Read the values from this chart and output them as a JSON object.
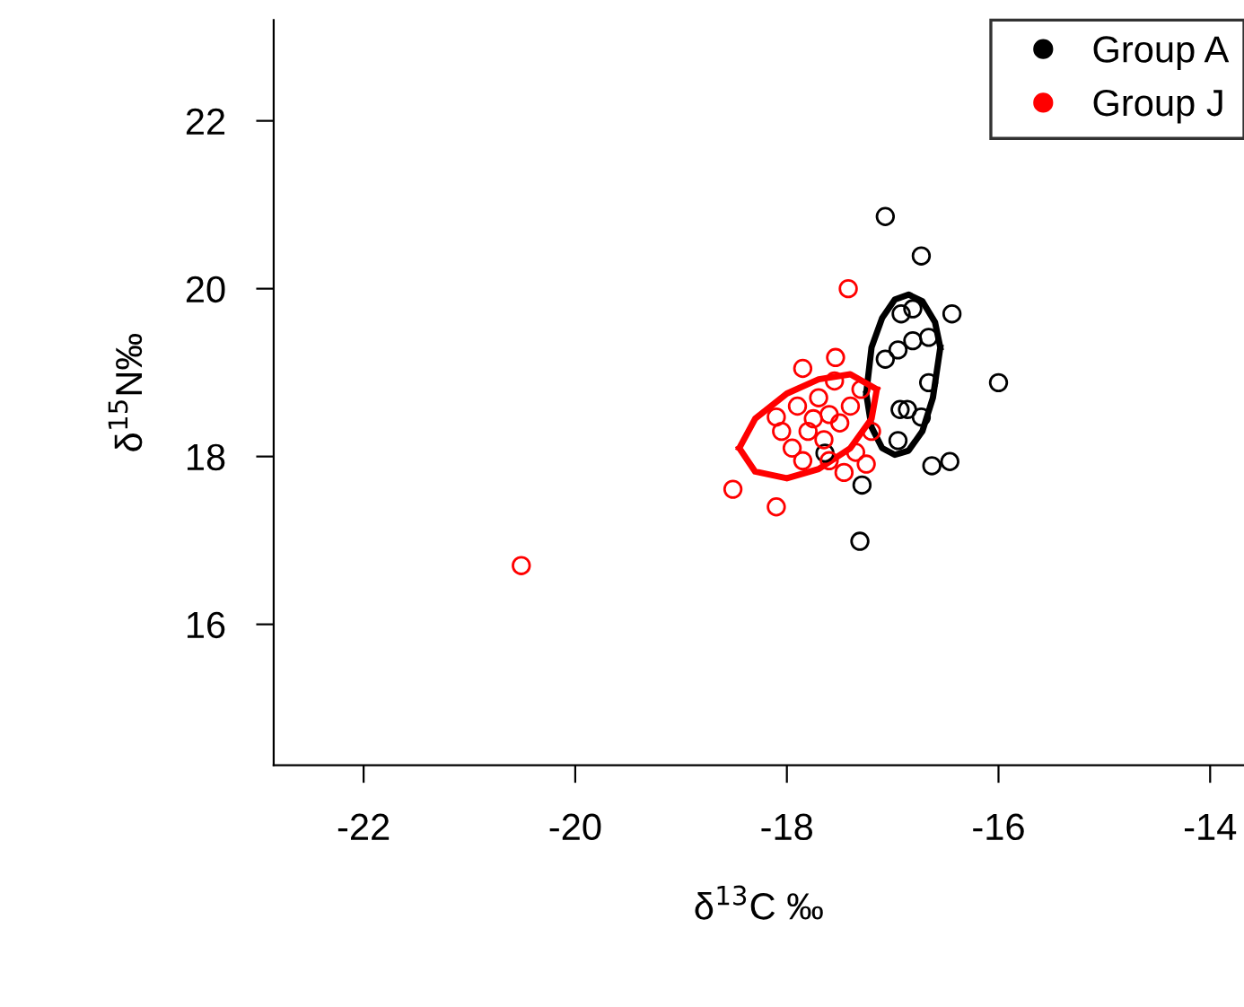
{
  "chart_data": {
    "type": "scatter",
    "xlabel": "δ$^{13}$C ‰",
    "ylabel": "δ$^{15}$N‰",
    "xlim": [
      -22.85,
      -13.68
    ],
    "ylim": [
      14.32,
      23.2
    ],
    "xticks": [
      -22,
      -20,
      -18,
      -16,
      -14
    ],
    "yticks": [
      16,
      18,
      20,
      22
    ],
    "grid": false,
    "legend": "top right",
    "marker": "circle",
    "series": [
      {
        "name": "Group A",
        "color": "#000000",
        "x": [
          -17.07,
          -16.73,
          -16.44,
          -16.0,
          -16.66,
          -16.93,
          -16.86,
          -16.63,
          -16.46,
          -17.29,
          -17.31,
          -16.92,
          -16.81,
          -16.66,
          -16.81,
          -16.95,
          -17.07,
          -16.95,
          -16.73,
          -17.64
        ],
        "values": [
          20.86,
          20.39,
          19.7,
          18.88,
          18.88,
          18.56,
          18.56,
          17.89,
          17.94,
          17.66,
          16.99,
          19.7,
          19.76,
          19.42,
          19.38,
          19.27,
          19.16,
          18.19,
          18.47,
          18.04
        ]
      },
      {
        "name": "Group J",
        "color": "#ff0000",
        "x": [
          -20.51,
          -17.42,
          -17.54,
          -17.85,
          -18.51,
          -18.1,
          -17.46,
          -17.25,
          -18.1,
          -17.9,
          -17.7,
          -17.6,
          -17.8,
          -17.5,
          -17.4,
          -17.65,
          -17.3,
          -17.95,
          -17.55,
          -17.75,
          -17.2,
          -18.05,
          -17.35,
          -17.6,
          -17.85
        ],
        "values": [
          16.7,
          20.0,
          19.18,
          19.05,
          17.61,
          17.4,
          17.81,
          17.91,
          18.47,
          18.6,
          18.7,
          18.5,
          18.3,
          18.4,
          18.6,
          18.2,
          18.8,
          18.1,
          18.9,
          18.45,
          18.3,
          18.3,
          18.05,
          17.95,
          17.95
        ]
      },
      {
        "type": "line",
        "color": "#000000",
        "marker": "none",
        "x": [
          -17.25,
          -17.2,
          -17.1,
          -16.98,
          -16.85,
          -16.72,
          -16.6,
          -16.55,
          null,
          -17.25,
          -17.2,
          -17.1,
          -16.98,
          -16.85,
          -16.72,
          -16.62,
          -16.55
        ],
        "values": [
          18.75,
          19.3,
          19.65,
          19.87,
          19.93,
          19.85,
          19.6,
          19.3,
          null,
          18.75,
          18.35,
          18.1,
          18.02,
          18.07,
          18.3,
          18.7,
          19.3
        ]
      },
      {
        "type": "line",
        "color": "#ff0000",
        "marker": "none",
        "x": [
          -18.45,
          -18.3,
          -18.0,
          -17.7,
          -17.4,
          -17.15,
          null,
          -18.45,
          -18.3,
          -18.0,
          -17.7,
          -17.4,
          -17.2,
          -17.15
        ],
        "values": [
          18.1,
          18.45,
          18.75,
          18.92,
          18.98,
          18.8,
          null,
          18.1,
          17.82,
          17.74,
          17.85,
          18.1,
          18.45,
          18.8
        ]
      }
    ]
  }
}
